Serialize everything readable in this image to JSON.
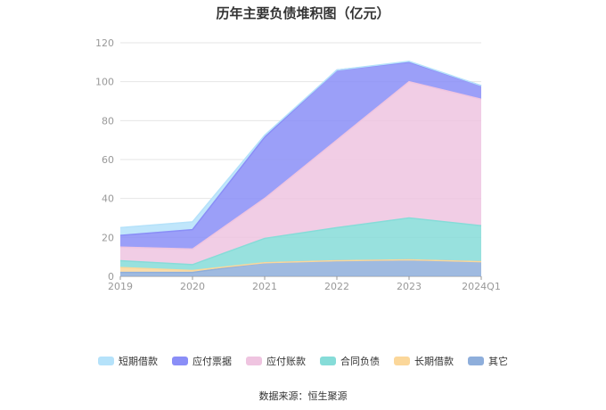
{
  "chart_data": {
    "type": "area",
    "stacked": true,
    "title": "历年主要负债堆积图（亿元）",
    "categories": [
      "2019",
      "2020",
      "2021",
      "2022",
      "2023",
      "2024Q1"
    ],
    "yticks": [
      "0",
      "20",
      "40",
      "60",
      "80",
      "100",
      "120"
    ],
    "ylim": [
      0,
      120
    ],
    "grid": true,
    "legend_position": "bottom",
    "series": [
      {
        "name": "其它",
        "color": "#8eaedb",
        "values": [
          2,
          2,
          7,
          8,
          8.5,
          7.5
        ]
      },
      {
        "name": "长期借款",
        "color": "#fbd79a",
        "values": [
          2.5,
          1,
          0,
          0,
          0,
          0
        ]
      },
      {
        "name": "合同负债",
        "color": "#86dcd8",
        "values": [
          3.5,
          3,
          12.5,
          17,
          21.5,
          18.5
        ]
      },
      {
        "name": "应付账款",
        "color": "#efc4e0",
        "values": [
          7,
          8,
          20.5,
          45,
          70,
          65
        ]
      },
      {
        "name": "应付票据",
        "color": "#8a8ef7",
        "values": [
          6,
          10,
          31.5,
          36,
          10,
          7
        ]
      },
      {
        "name": "短期借款",
        "color": "#b5e2fa",
        "values": [
          4,
          4,
          1,
          0,
          0.5,
          0
        ]
      }
    ],
    "legend_order": [
      "短期借款",
      "应付票据",
      "应付账款",
      "合同负债",
      "长期借款",
      "其它"
    ]
  },
  "source": "数据来源：恒生聚源"
}
